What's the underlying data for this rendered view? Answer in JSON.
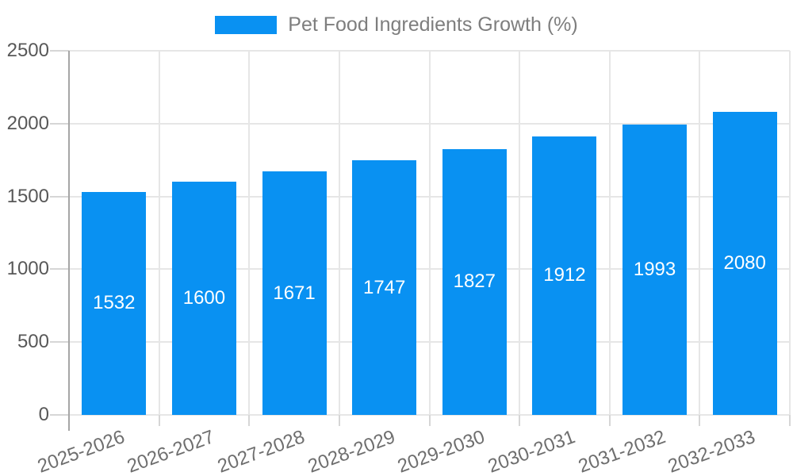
{
  "legend": {
    "label": "Pet Food Ingredients Growth (%)"
  },
  "colors": {
    "bar": "#0991f2",
    "value_label": "#ffffff",
    "gridline": "#e6e6e6",
    "tick": "#d6d6d6",
    "axis_line": "#a6a6a6",
    "y_label": "#585858",
    "x_label": "#6e6e6e",
    "legend_text": "#7e7e7e"
  },
  "chart_data": {
    "type": "bar",
    "title": "Pet Food Ingredients Growth (%)",
    "categories": [
      "2025-2026",
      "2026-2027",
      "2027-2028",
      "2028-2029",
      "2029-2030",
      "2030-2031",
      "2031-2032",
      "2032-2033"
    ],
    "values": [
      1532,
      1600,
      1671,
      1747,
      1827,
      1912,
      1993,
      2080
    ],
    "value_labels": [
      "1532",
      "1600",
      "1671",
      "1747",
      "1827",
      "1912",
      "1993",
      "2080"
    ],
    "xlabel": "",
    "ylabel": "",
    "ylim": [
      0,
      2500
    ],
    "y_ticks": [
      0,
      500,
      1000,
      1500,
      2000,
      2500
    ],
    "y_tick_labels": [
      "0",
      "500",
      "1000",
      "1500",
      "2000",
      "2500"
    ],
    "grid": true,
    "legend_position": "top",
    "series_name": "Pet Food Ingredients Growth (%)"
  }
}
